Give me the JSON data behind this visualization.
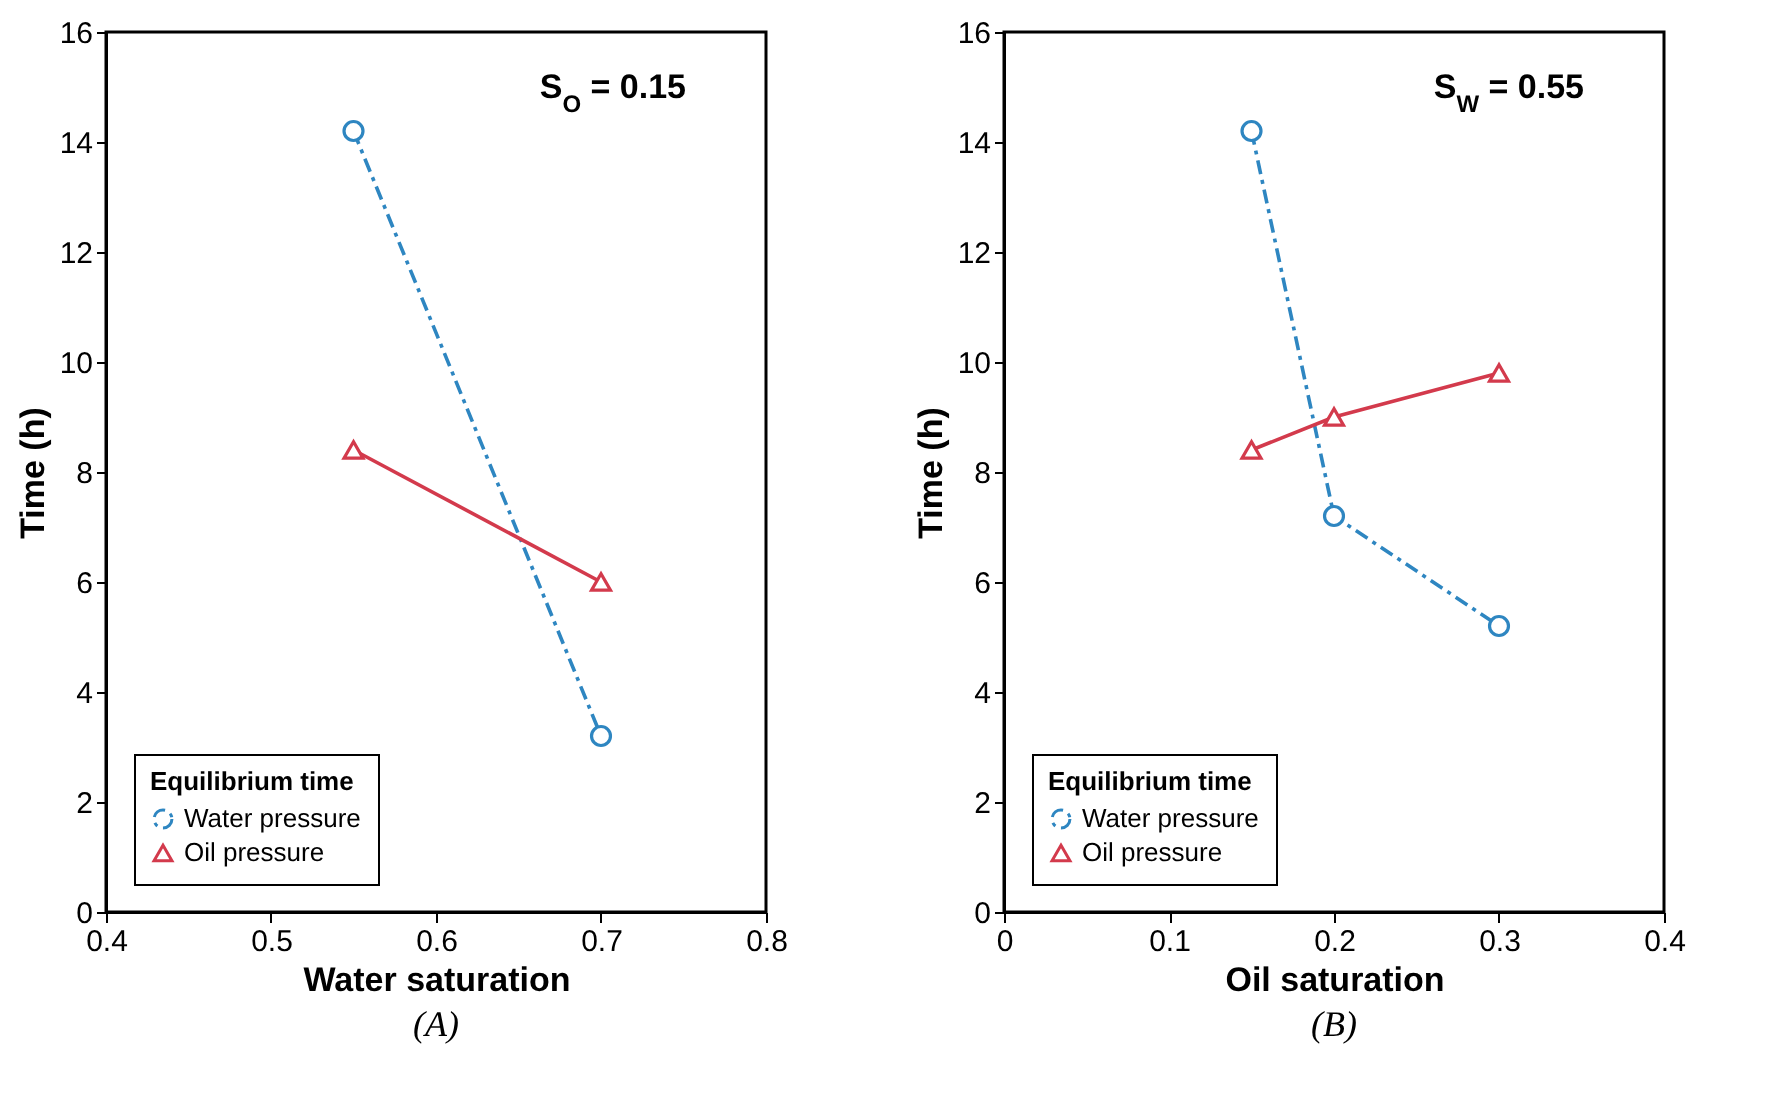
{
  "chart_data": [
    {
      "type": "line",
      "title": "(A)",
      "xlabel": "Water saturation",
      "ylabel": "Time (h)",
      "legend_title": "Equilibrium time",
      "annotations": [
        "S$_{O}$ = 0.15"
      ],
      "x": [
        0.55,
        0.7
      ],
      "series": [
        {
          "name": "Water pressure",
          "color": "#2e86c1",
          "values": [
            14.2,
            3.2
          ],
          "marker": "circle",
          "line_style": "dashed"
        },
        {
          "name": "Oil pressure",
          "color": "#d33a4c",
          "values": [
            8.4,
            6.0
          ],
          "marker": "triangle",
          "line_style": "solid"
        }
      ],
      "xlim": [
        0.4,
        0.8
      ],
      "xticks": [
        0.4,
        0.5,
        0.6,
        0.7,
        0.8
      ],
      "ylim": [
        0,
        16
      ],
      "yticks": [
        0,
        2,
        4,
        6,
        8,
        10,
        12,
        14,
        16
      ],
      "legend": "bottom left"
    },
    {
      "type": "line",
      "title": "(B)",
      "xlabel": "Oil saturation",
      "ylabel": "Time (h)",
      "legend_title": "Equilibrium time",
      "annotations": [
        "S$_{W}$ = 0.55"
      ],
      "x": [
        0.15,
        0.2,
        0.3
      ],
      "series": [
        {
          "name": "Water pressure",
          "color": "#2e86c1",
          "values": [
            14.2,
            7.2,
            5.2
          ],
          "marker": "circle",
          "line_style": "dashed"
        },
        {
          "name": "Oil pressure",
          "color": "#d33a4c",
          "values": [
            8.4,
            9.0,
            9.8
          ],
          "marker": "triangle",
          "line_style": "solid"
        }
      ],
      "xlim": [
        0,
        0.4
      ],
      "xticks": [
        0,
        0.1,
        0.2,
        0.3,
        0.4
      ],
      "ylim": [
        0,
        16
      ],
      "yticks": [
        0,
        2,
        4,
        6,
        8,
        10,
        12,
        14,
        16
      ],
      "legend": "bottom left"
    }
  ]
}
